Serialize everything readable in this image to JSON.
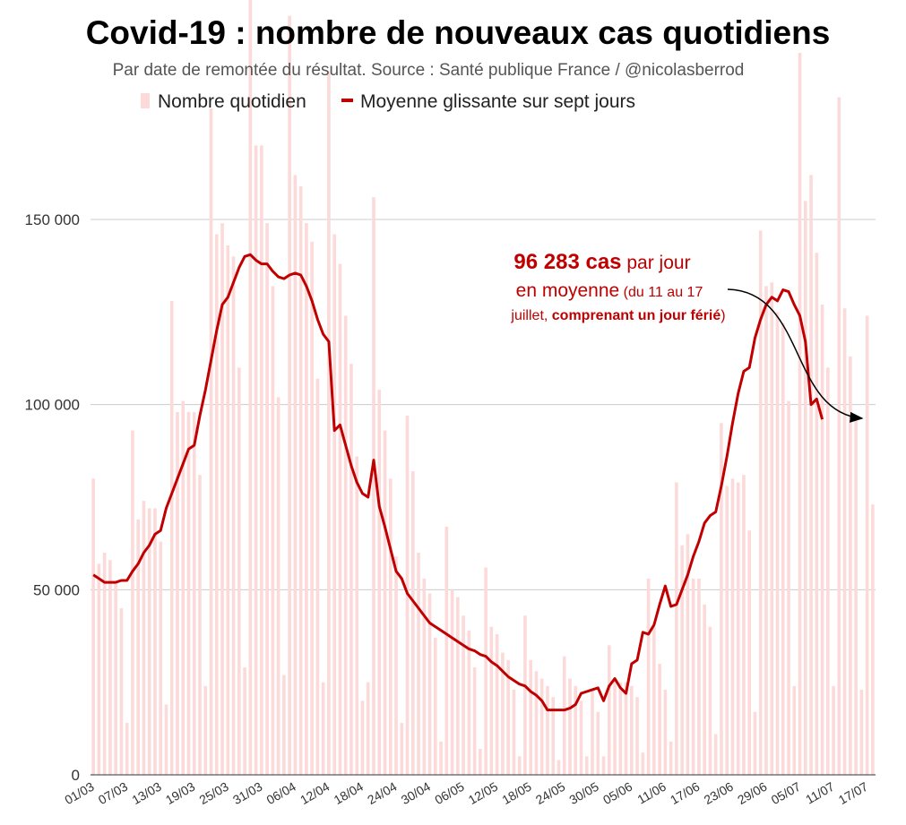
{
  "chart_data": {
    "type": "bar",
    "title": "Covid-19 : nombre de nouveaux cas quotidiens",
    "subtitle": "Par date de remontée du résultat. Source : Santé publique France / @nicolasberrod",
    "legend": {
      "bars_label": "Nombre quotidien",
      "line_label": "Moyenne glissante sur sept jours",
      "placement": "top"
    },
    "colors": {
      "bars": "#fcdada",
      "line": "#c00000",
      "grid": "#cccccc",
      "annotation": "#c00000",
      "arrow": "#000000"
    },
    "xlabel": "",
    "ylabel": "",
    "ylim": [
      0,
      200000
    ],
    "yticks": [
      {
        "value": 0,
        "label": "0"
      },
      {
        "value": 50000,
        "label": "50 000"
      },
      {
        "value": 100000,
        "label": "100 000"
      },
      {
        "value": 150000,
        "label": "150 000"
      }
    ],
    "xtick_labels": [
      "01/03",
      "07/03",
      "13/03",
      "19/03",
      "25/03",
      "31/03",
      "06/04",
      "12/04",
      "18/04",
      "24/04",
      "30/04",
      "06/05",
      "12/05",
      "18/05",
      "24/05",
      "30/05",
      "05/06",
      "11/06",
      "17/06",
      "23/06",
      "29/06",
      "05/07",
      "11/07",
      "17/07"
    ],
    "dates_start": "01/03",
    "dates_end": "17/07",
    "bars": [
      80000,
      57000,
      60000,
      58000,
      52000,
      45000,
      14000,
      93000,
      69000,
      74000,
      72000,
      72000,
      63000,
      19000,
      128000,
      98000,
      101000,
      98000,
      98000,
      81000,
      24000,
      180000,
      146000,
      149000,
      143000,
      140000,
      110000,
      29000,
      210000,
      170000,
      170000,
      149000,
      132000,
      102000,
      27000,
      205000,
      162000,
      159000,
      149000,
      144000,
      107000,
      25000,
      190000,
      146000,
      138000,
      124000,
      111000,
      86000,
      20000,
      25000,
      156000,
      104000,
      93000,
      80000,
      59000,
      14000,
      97000,
      82000,
      60000,
      53000,
      49000,
      37000,
      9000,
      67000,
      50000,
      48000,
      43000,
      39000,
      29000,
      7000,
      56000,
      40000,
      38000,
      33000,
      31000,
      23000,
      5000,
      43000,
      31000,
      28000,
      26000,
      24000,
      21000,
      4000,
      32000,
      26000,
      24000,
      20000,
      5000,
      23000,
      17000,
      5000,
      35000,
      26000,
      25000,
      25000,
      24000,
      21000,
      6000,
      53000,
      40000,
      30000,
      23000,
      9000,
      79000,
      62000,
      65000,
      53000,
      53000,
      46000,
      40000,
      11000,
      95000,
      78000,
      80000,
      79000,
      81000,
      66000,
      17000,
      147000,
      132000,
      133000,
      125000,
      122000,
      101000,
      24000,
      195000,
      155000,
      162000,
      141000,
      127000,
      110000,
      24000,
      183000,
      126000,
      113000,
      96000,
      23000,
      124000,
      73000
    ],
    "moving_average": [
      54000,
      53000,
      52000,
      52000,
      52000,
      52500,
      52500,
      55000,
      57000,
      60000,
      62000,
      65000,
      66000,
      72000,
      76000,
      80000,
      84000,
      88000,
      89000,
      97000,
      104000,
      112000,
      120000,
      127000,
      129000,
      133000,
      137000,
      140000,
      140500,
      139000,
      138000,
      138000,
      136000,
      134500,
      134000,
      135000,
      135500,
      135000,
      132000,
      128000,
      123000,
      119000,
      117000,
      93000,
      94500,
      89000,
      83500,
      79000,
      76000,
      75000,
      85000,
      72500,
      67000,
      61000,
      55000,
      53000,
      49000,
      47000,
      45000,
      43000,
      41000,
      40000,
      39000,
      38000,
      37000,
      36000,
      35000,
      34000,
      33500,
      32500,
      32000,
      30500,
      29500,
      28000,
      26500,
      25500,
      24500,
      24000,
      22500,
      21500,
      20000,
      17500,
      17500,
      17500,
      17500,
      18000,
      19000,
      22000,
      22500,
      23000,
      23500,
      20000,
      24000,
      26000,
      23500,
      22000,
      30000,
      31000,
      38500,
      38000,
      40500,
      46000,
      51000,
      45500,
      46000,
      50000,
      54000,
      59000,
      63000,
      68000,
      70000,
      71000,
      78000,
      86000,
      95000,
      103000,
      109000,
      110000,
      118000,
      123000,
      127000,
      129000,
      128000,
      131000,
      130500,
      127000,
      124000,
      117000,
      100000,
      101500,
      96000
    ],
    "annotation": {
      "value_text": "96 283 cas",
      "line1_rest": " par jour",
      "line2": "en moyenne",
      "line2_small": " (du 11 au 17",
      "line3_pre": "juillet, ",
      "line3_bold": "comprenant un jour férié",
      "line3_post": ")"
    }
  }
}
